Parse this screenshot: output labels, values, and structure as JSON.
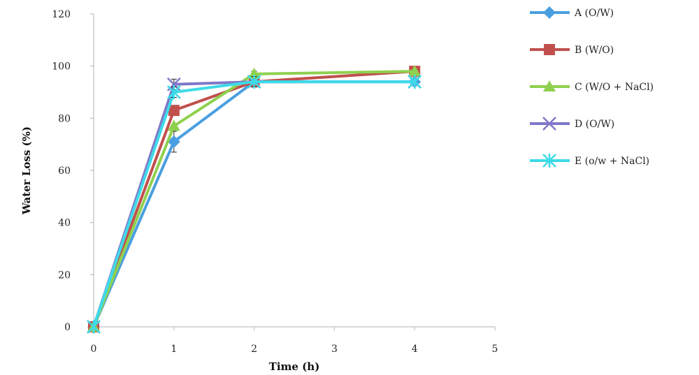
{
  "chart_data": {
    "type": "line",
    "title": "",
    "xlabel": "Time (h)",
    "ylabel": "Water Loss (%)",
    "xlim": [
      0,
      5
    ],
    "ylim": [
      0,
      120
    ],
    "x_ticks": [
      "0",
      "1",
      "2",
      "3",
      "4",
      "5"
    ],
    "y_ticks": [
      "0",
      "20",
      "40",
      "60",
      "80",
      "100",
      "120"
    ],
    "grid": false,
    "legend_position": "right",
    "x": [
      0,
      1,
      2,
      4
    ],
    "series": [
      {
        "name": "A (O/W)",
        "color": "#4a9fe0",
        "marker": "diamond",
        "values": [
          0,
          71,
          94,
          94
        ],
        "errors": [
          0,
          4,
          0,
          0
        ]
      },
      {
        "name": "B (W/O)",
        "color": "#c0504d",
        "marker": "square",
        "values": [
          0,
          83,
          94,
          98
        ],
        "errors": [
          0,
          0,
          2,
          0
        ]
      },
      {
        "name": "C (W/O + NaCl)",
        "color": "#8fd14f",
        "marker": "triangle",
        "values": [
          0,
          77,
          97,
          98
        ],
        "errors": [
          0,
          0,
          1,
          0
        ]
      },
      {
        "name": "D (O/W)",
        "color": "#7f77c9",
        "marker": "x",
        "values": [
          0,
          93,
          94,
          94
        ],
        "errors": [
          0,
          2,
          2,
          0
        ]
      },
      {
        "name": "E (o/w + NaCl)",
        "color": "#3ddbe8",
        "marker": "star",
        "values": [
          0,
          90,
          94,
          94
        ],
        "errors": [
          0,
          2,
          2,
          0
        ]
      }
    ]
  }
}
